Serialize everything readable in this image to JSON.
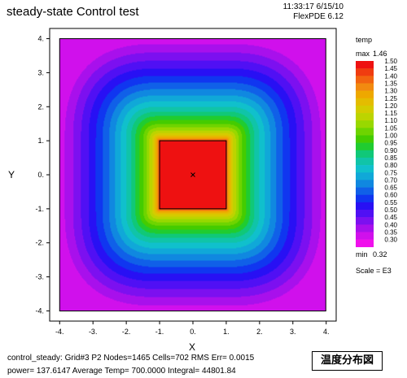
{
  "header": {
    "title": "steady-state Control test",
    "timestamp": "11:33:17 6/15/10",
    "software": "FlexPDE 6.12"
  },
  "legend": {
    "title": "temp",
    "max_label": "max",
    "max_value": "1.46",
    "min_label": "min",
    "min_value": "0.32",
    "scale": "Scale = E3",
    "levels": [
      "1.50",
      "1.45",
      "1.40",
      "1.35",
      "1.30",
      "1.25",
      "1.20",
      "1.15",
      "1.10",
      "1.05",
      "1.00",
      "0.95",
      "0.90",
      "0.85",
      "0.80",
      "0.75",
      "0.70",
      "0.65",
      "0.60",
      "0.55",
      "0.50",
      "0.45",
      "0.40",
      "0.35",
      "0.30"
    ],
    "colors": [
      "#ee1111",
      "#f03c10",
      "#f26410",
      "#f28a10",
      "#eea800",
      "#e4bc00",
      "#d4cc00",
      "#bcd400",
      "#98d800",
      "#6ed400",
      "#44cc00",
      "#20cc30",
      "#10c878",
      "#10c4a8",
      "#10c0cc",
      "#10a8d8",
      "#1088e0",
      "#1060e8",
      "#1036f0",
      "#2810f4",
      "#5010f4",
      "#7c10f0",
      "#a810ec",
      "#d010ec",
      "#f010ec"
    ]
  },
  "footer": {
    "line1": "control_steady:  Grid#3  P2  Nodes=1465 Cells=702 RMS Err= 0.0015",
    "line2": "power=  137.6147   Average Temp=  700.0000  Integral=  44801.84",
    "stamp": "温度分布図"
  },
  "chart_data": {
    "type": "heatmap",
    "title": "steady-state Control test",
    "xlabel": "X",
    "ylabel": "Y",
    "variable": "temp",
    "scale": "E3",
    "xlim": [
      -4.3,
      4.3
    ],
    "ylim": [
      -4.3,
      4.3
    ],
    "x_ticks": [
      "-4.",
      "-3.",
      "-2.",
      "-1.",
      "0.",
      "1.",
      "2.",
      "3.",
      "4."
    ],
    "y_ticks": [
      "4.",
      "3.",
      "2.",
      "1.",
      "0.",
      "-1.",
      "-2.",
      "-3.",
      "-4."
    ],
    "x_tick_values": [
      -4,
      -3,
      -2,
      -1,
      0,
      1,
      2,
      3,
      4
    ],
    "y_tick_values": [
      4,
      3,
      2,
      1,
      0,
      -1,
      -2,
      -3,
      -4
    ],
    "domain": {
      "x": [
        -4,
        4
      ],
      "y": [
        -4,
        4
      ]
    },
    "heater_region": {
      "x": [
        -1,
        1
      ],
      "y": [
        -1,
        1
      ]
    },
    "max": 1.46,
    "min": 0.32,
    "contour_levels": [
      1.5,
      1.45,
      1.4,
      1.35,
      1.3,
      1.25,
      1.2,
      1.15,
      1.1,
      1.05,
      1.0,
      0.95,
      0.9,
      0.85,
      0.8,
      0.75,
      0.7,
      0.65,
      0.6,
      0.55,
      0.5,
      0.45,
      0.4,
      0.35,
      0.3
    ]
  }
}
